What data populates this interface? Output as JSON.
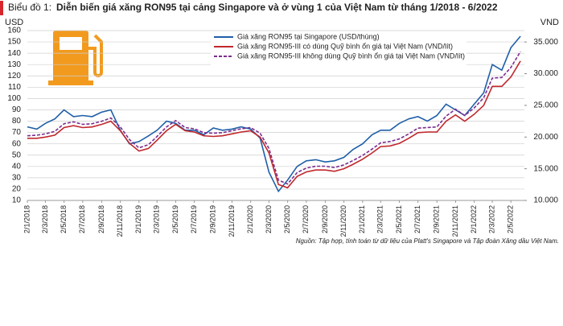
{
  "chart_data": {
    "type": "line",
    "label": "Biểu đồ 1:",
    "title": "Diễn biến giá xăng RON95 tại cảng Singapore và ở vùng 1 của Việt Nam từ tháng 1/2018 - 6/2022",
    "ylabel": "USD",
    "y2label": "VND",
    "source": "Nguồn: Tập hợp, tính toán từ dữ liệu của Platt's Singapore và Tập đoàn Xăng dầu Việt Nam.",
    "x": [
      "2/1/2018",
      "2/2/2018",
      "2/3/2018",
      "2/4/2018",
      "2/5/2018",
      "2/6/2018",
      "2/7/2018",
      "2/8/2018",
      "2/9/2018",
      "2/10/2018",
      "2/11/2018",
      "2/12/2018",
      "2/1/2019",
      "2/2/2019",
      "2/3/2019",
      "2/4/2019",
      "2/5/2019",
      "2/6/2019",
      "2/7/2019",
      "2/8/2019",
      "2/9/2019",
      "2/10/2019",
      "2/11/2019",
      "2/12/2019",
      "2/1/2020",
      "2/2/2020",
      "2/3/2020",
      "2/4/2020",
      "2/5/2020",
      "2/6/2020",
      "2/7/2020",
      "2/8/2020",
      "2/9/2020",
      "2/10/2020",
      "2/11/2020",
      "2/12/2020",
      "2/1/2021",
      "2/2/2021",
      "2/3/2021",
      "2/4/2021",
      "2/5/2021",
      "2/6/2021",
      "2/7/2021",
      "2/8/2021",
      "2/9/2021",
      "2/10/2021",
      "2/11/2021",
      "2/12/2021",
      "2/1/2022",
      "2/2/2022",
      "2/3/2022",
      "2/4/2022",
      "2/5/2022",
      "2/6/2022"
    ],
    "series": [
      {
        "name": "Giá xăng RON95 tại Singapore (USD/thùng)",
        "color": "#1f5fa8",
        "dash": false,
        "values": [
          75,
          73,
          78,
          82,
          90,
          84,
          85,
          84,
          88,
          90,
          72,
          60,
          62,
          67,
          72,
          80,
          78,
          72,
          72,
          68,
          74,
          72,
          73,
          75,
          73,
          65,
          35,
          18,
          28,
          40,
          45,
          46,
          44,
          45,
          48,
          55,
          60,
          68,
          72,
          72,
          78,
          82,
          84,
          80,
          85,
          95,
          90,
          85,
          95,
          105,
          130,
          125,
          145,
          155
        ]
      },
      {
        "name": "Giá xăng RON95-III có dùng Quỹ bình ổn giá tại Việt Nam (VND/lít)",
        "color": "#c0272d",
        "dash": false,
        "axis": "y2",
        "values": [
          19800,
          19800,
          20000,
          20300,
          21500,
          21800,
          21500,
          21600,
          22000,
          22500,
          21000,
          19000,
          17800,
          18200,
          19500,
          21000,
          22000,
          21000,
          20800,
          20200,
          20100,
          20200,
          20500,
          20800,
          21000,
          20000,
          17500,
          12500,
          12000,
          13800,
          14500,
          14800,
          14800,
          14600,
          15000,
          15700,
          16500,
          17500,
          18500,
          18600,
          19000,
          19800,
          20700,
          20800,
          20800,
          22500,
          23500,
          22500,
          23600,
          25000,
          28000,
          28000,
          29500,
          32000
        ]
      },
      {
        "name": "Giá xăng RON95-III không dùng Quỹ bình ổn giá tại Việt Nam (VND/lít)",
        "color": "#7b2d8e",
        "dash": true,
        "axis": "y2",
        "values": [
          20200,
          20300,
          20500,
          20900,
          22100,
          22400,
          22000,
          22100,
          22500,
          23000,
          21600,
          19600,
          18300,
          18800,
          20100,
          21600,
          22600,
          21500,
          21300,
          20700,
          20600,
          20700,
          21000,
          21300,
          21500,
          20600,
          18200,
          13200,
          12600,
          14400,
          15100,
          15400,
          15400,
          15200,
          15600,
          16300,
          17100,
          18100,
          19100,
          19300,
          19700,
          20500,
          21400,
          21500,
          21600,
          23300,
          24400,
          23400,
          24600,
          26200,
          29300,
          29400,
          31000,
          33500
        ]
      }
    ],
    "xlim": [
      "2/1/2018",
      "15/6/2022"
    ],
    "xticks": [
      "2/1/2018",
      "2/3/2018",
      "2/5/2018",
      "2/7/2018",
      "2/9/2018",
      "2/11/2018",
      "2/1/2019",
      "2/3/2019",
      "2/5/2019",
      "2/7/2019",
      "2/9/2019",
      "2/11/2019",
      "2/1/2020",
      "2/3/2020",
      "2/5/2020",
      "2/7/2020",
      "2/9/2020",
      "2/11/2020",
      "2/1/2021",
      "2/3/2021",
      "2/5/2021",
      "2/7/2021",
      "2/9/2021",
      "2/11/2021",
      "2/1/2022",
      "2/3/2022",
      "2/5/2022"
    ],
    "ylim": [
      10,
      160
    ],
    "yticks": [
      10,
      20,
      30,
      40,
      50,
      60,
      70,
      80,
      90,
      100,
      110,
      120,
      130,
      140,
      150,
      160
    ],
    "y2lim": [
      10000,
      36800
    ],
    "y2ticks": [
      {
        "value": 10000,
        "label": "10.000"
      },
      {
        "value": 15000,
        "label": "15.000"
      },
      {
        "value": 20000,
        "label": "20.000"
      },
      {
        "value": 25000,
        "label": "25.000"
      },
      {
        "value": 30000,
        "label": "30.000"
      },
      {
        "value": 35000,
        "label": "35.000"
      }
    ],
    "grid": true
  }
}
